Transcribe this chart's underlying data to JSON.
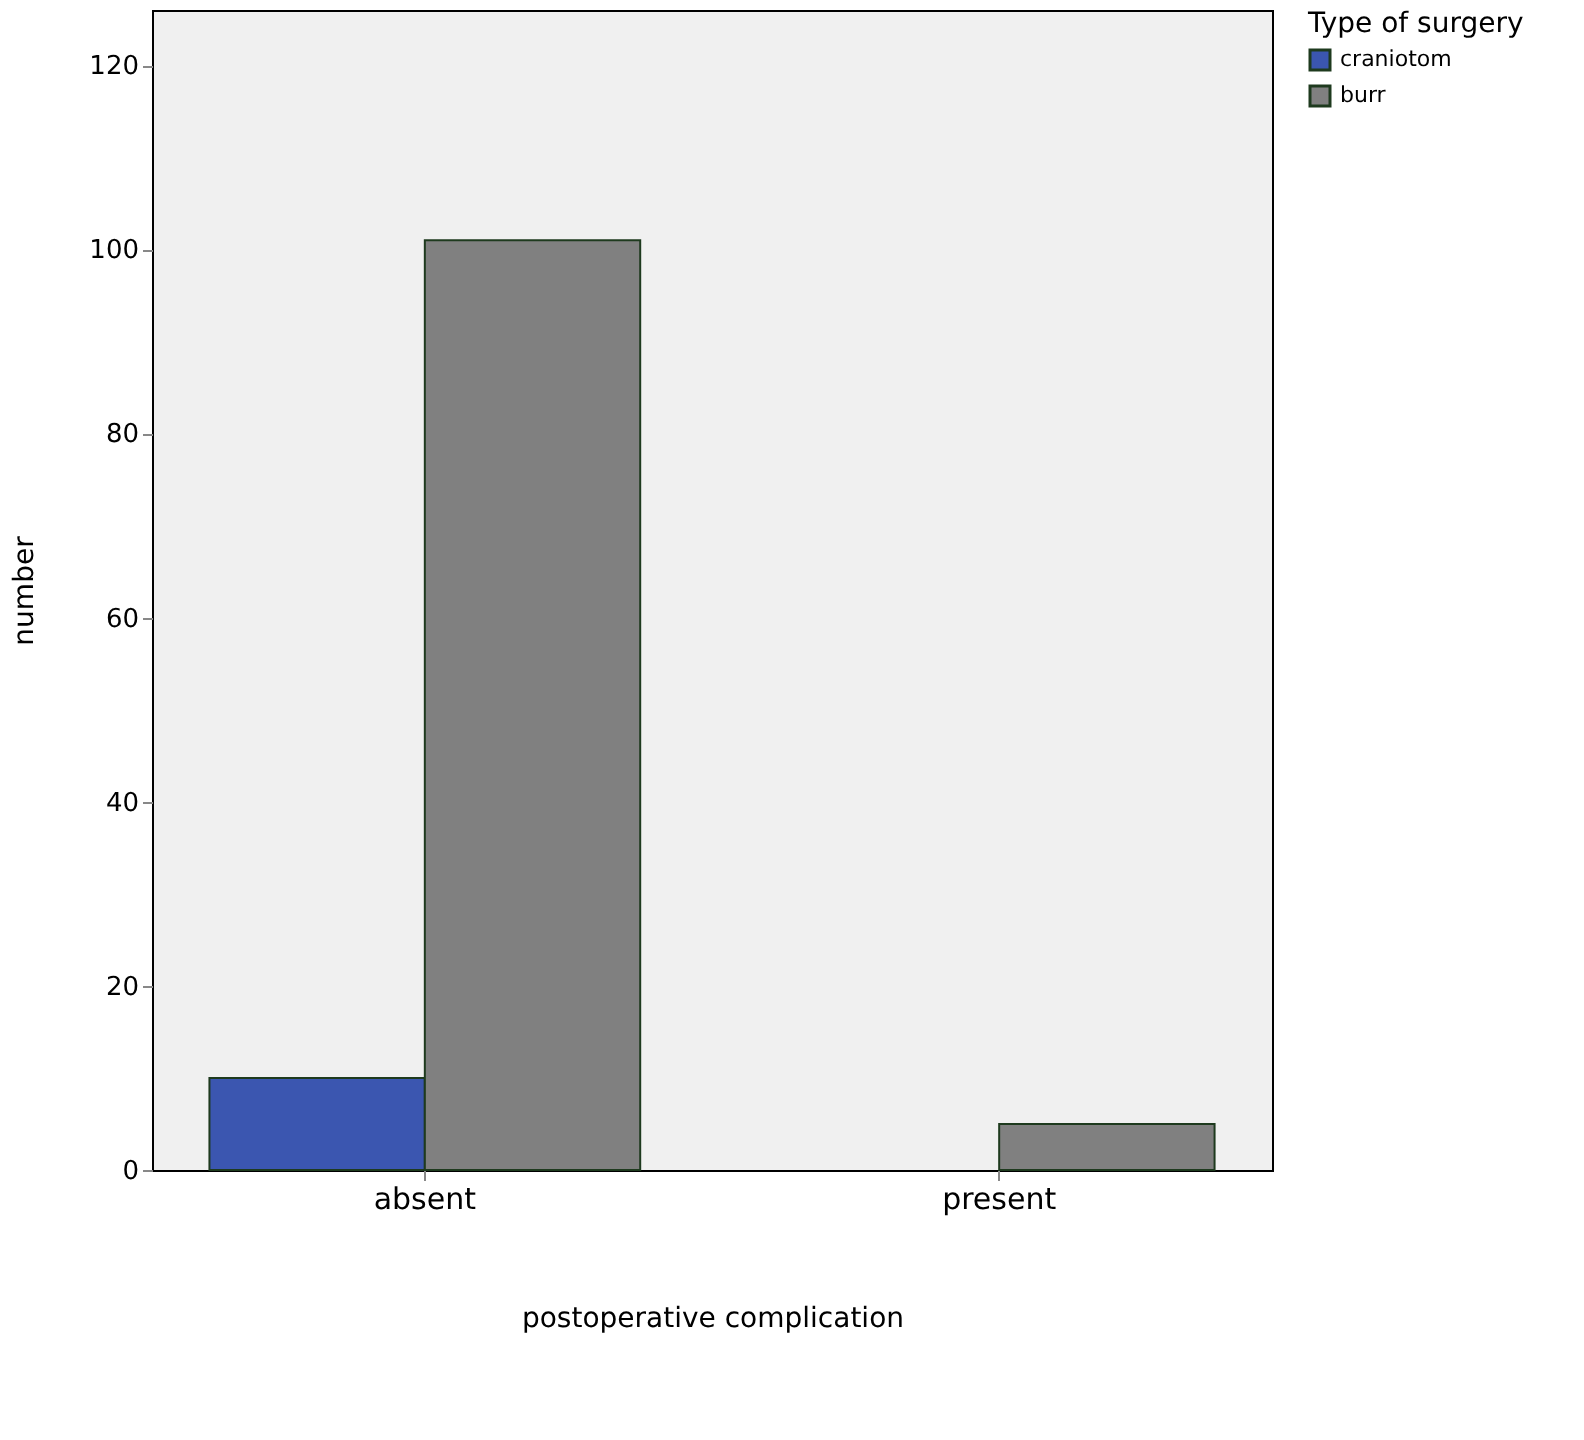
{
  "chart_data": {
    "type": "bar",
    "xlabel": "postoperative complication",
    "ylabel": "number",
    "legend_title": "Type of surgery",
    "legend": "top right",
    "categories": [
      "absent",
      "present"
    ],
    "series": [
      {
        "name": "craniotom",
        "color": "#3b56b0",
        "values": [
          10,
          null
        ]
      },
      {
        "name": "burr",
        "color": "#808080",
        "values": [
          101,
          5
        ]
      }
    ],
    "ylim": [
      0,
      126
    ],
    "yticks": [
      0,
      20,
      40,
      60,
      80,
      100,
      120
    ],
    "grid": false
  }
}
